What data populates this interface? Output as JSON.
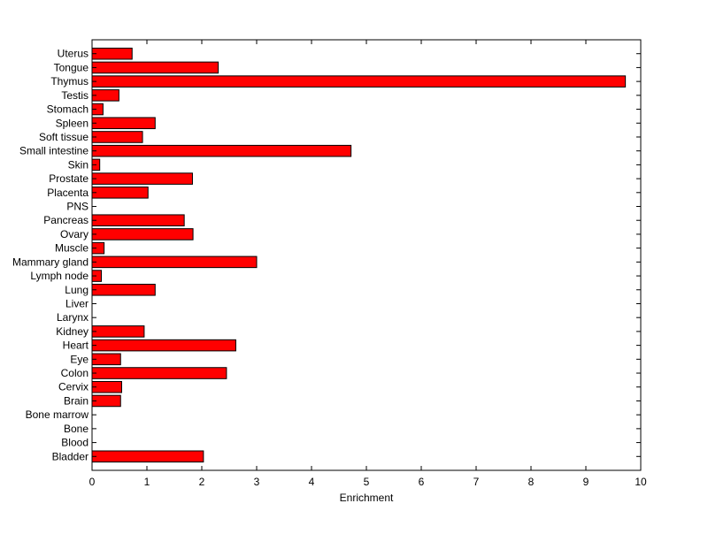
{
  "chart_data": {
    "type": "bar",
    "orientation": "horizontal",
    "categories": [
      "Bladder",
      "Blood",
      "Bone",
      "Bone marrow",
      "Brain",
      "Cervix",
      "Colon",
      "Eye",
      "Heart",
      "Kidney",
      "Larynx",
      "Liver",
      "Lung",
      "Lymph node",
      "Mammary gland",
      "Muscle",
      "Ovary",
      "Pancreas",
      "PNS",
      "Placenta",
      "Prostate",
      "Skin",
      "Small intestine",
      "Soft tissue",
      "Spleen",
      "Stomach",
      "Testis",
      "Thymus",
      "Tongue",
      "Uterus"
    ],
    "values": [
      2.03,
      0,
      0,
      0,
      0.52,
      0.54,
      2.45,
      0.52,
      2.62,
      0.95,
      0,
      0,
      1.15,
      0.17,
      3.0,
      0.22,
      1.84,
      1.68,
      0,
      1.02,
      1.83,
      0.14,
      4.72,
      0.92,
      1.15,
      0.2,
      0.49,
      9.72,
      2.3,
      0.73
    ],
    "title": "",
    "xlabel": "Enrichment",
    "ylabel": "",
    "xlim": [
      0,
      10
    ],
    "xticks": [
      "0",
      "1",
      "2",
      "3",
      "4",
      "5",
      "6",
      "7",
      "8",
      "9",
      "10"
    ],
    "bar_color": "#ff0000",
    "bar_edge_color": "#000000",
    "grid": false
  }
}
